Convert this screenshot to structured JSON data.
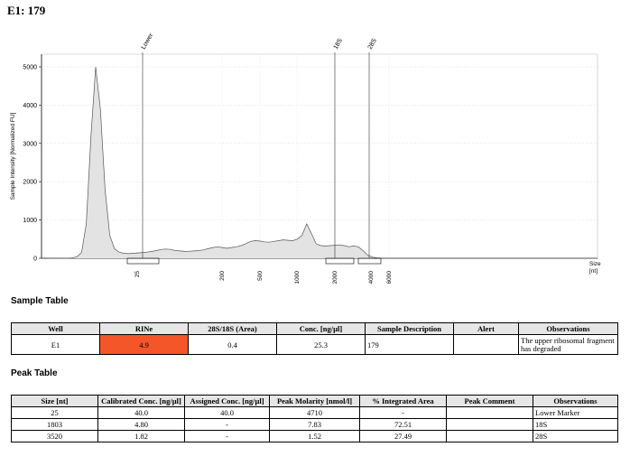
{
  "title": "E1: 179",
  "chart_data": {
    "type": "line",
    "ylabel": "Sample Intensity [Normalized FU]",
    "xlabel": "Size\n[nt]",
    "ylim": [
      0,
      5400
    ],
    "yticks": [
      0,
      1000,
      2000,
      3000,
      4000,
      5000
    ],
    "xticks": [
      "25",
      "200",
      "500",
      "1000",
      "2000",
      "4000",
      "6000"
    ],
    "peak_labels": [
      "Lower",
      "18S",
      "28S"
    ],
    "grid": true,
    "trace_y": [
      0,
      0,
      0,
      0,
      0,
      10,
      40,
      150,
      900,
      3200,
      5000,
      3900,
      1800,
      600,
      250,
      160,
      130,
      120,
      130,
      140,
      150,
      160,
      180,
      200,
      230,
      240,
      230,
      200,
      190,
      180,
      185,
      190,
      200,
      220,
      250,
      280,
      300,
      280,
      260,
      280,
      300,
      330,
      380,
      440,
      460,
      450,
      430,
      420,
      440,
      460,
      480,
      470,
      460,
      500,
      600,
      900,
      650,
      380,
      330,
      320,
      330,
      340,
      350,
      330,
      300,
      320,
      300,
      200,
      80,
      30,
      10,
      5,
      0,
      0,
      0,
      0,
      0,
      0,
      0,
      0,
      0,
      0,
      0,
      0,
      0,
      0,
      0,
      0,
      0,
      0,
      0,
      0,
      0,
      0,
      0,
      0,
      0,
      0,
      0,
      0,
      0,
      0,
      0,
      0,
      0,
      0,
      0,
      0,
      0,
      0,
      0,
      0,
      0,
      0,
      0,
      0,
      0,
      0
    ]
  },
  "sample_table": {
    "heading": "Sample Table",
    "headers": [
      "Well",
      "RINe",
      "28S/18S (Area)",
      "Conc. [ng/µl]",
      "Sample Description",
      "Alert",
      "Observations"
    ],
    "row": {
      "well": "E1",
      "rine": "4.9",
      "ratio": "0.4",
      "conc": "25.3",
      "description": "179",
      "alert": "",
      "observations": "The upper ribosomal fragment has degraded"
    },
    "rine_color": "#f4562a"
  },
  "peak_table": {
    "heading": "Peak Table",
    "headers": [
      "Size [nt]",
      "Calibrated Conc. [ng/µl]",
      "Assigned Conc. [ng/µl]",
      "Peak Molarity [nmol/l]",
      "% Integrated Area",
      "Peak Comment",
      "Observations"
    ],
    "rows": [
      [
        "25",
        "40.0",
        "40.0",
        "4710",
        "-",
        "",
        "Lower Marker"
      ],
      [
        "1803",
        "4.80",
        "-",
        "7.83",
        "72.51",
        "",
        "18S"
      ],
      [
        "3520",
        "1.82",
        "-",
        "1.52",
        "27.49",
        "",
        "28S"
      ]
    ]
  }
}
